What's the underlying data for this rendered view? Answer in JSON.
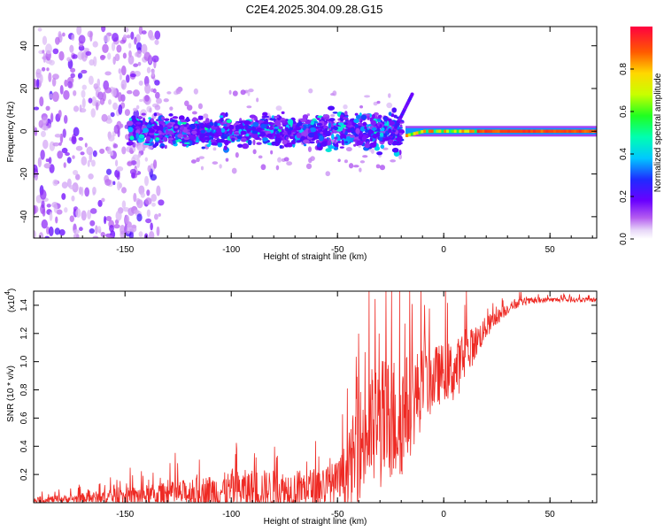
{
  "figure": {
    "title": "C2E4.2025.304.09.28.G15"
  },
  "colors": {
    "snr_line": "#ee2a24",
    "axes": "#000000",
    "background": "#ffffff"
  },
  "chart_data": [
    {
      "type": "heatmap",
      "xlabel": "Height of straight line (km)",
      "ylabel": "Frequency (Hz)",
      "xlim": [
        -193,
        72
      ],
      "ylim": [
        -50,
        49
      ],
      "xticks": [
        -150,
        -100,
        -50,
        0,
        50
      ],
      "xtick_labels": [
        "-150",
        "-100",
        "-50",
        "0",
        "50"
      ],
      "yticks": [
        -40,
        -20,
        0,
        20,
        40
      ],
      "ytick_labels": [
        "-40",
        "-20",
        "0",
        "20",
        "40"
      ],
      "grid": false,
      "colorbar": {
        "label": "Normalized spectral amplitude",
        "range": [
          0,
          1
        ],
        "ticks": [
          0.0,
          0.2,
          0.4,
          0.6,
          0.8
        ],
        "tick_labels": [
          "0.0",
          "0.2",
          "0.4",
          "0.6",
          "0.8"
        ]
      },
      "description_points": {
        "noise_band_x": [
          -193,
          -25
        ],
        "noise_band_freq_spread_hz": [
          -8,
          8
        ],
        "tone_start_x": -18,
        "tone_freq_hz": 0,
        "tone_amplitude": 0.95
      }
    },
    {
      "type": "line",
      "xlabel": "Height of straight line (km)",
      "ylabel": "SNR (10 * v/v)",
      "y_multiplier": "(x10",
      "y_multiplier_exp": "4",
      "y_multiplier_close": ")",
      "xlim": [
        -193,
        72
      ],
      "ylim": [
        0,
        1.5
      ],
      "xticks": [
        -150,
        -100,
        -50,
        0,
        50
      ],
      "xtick_labels": [
        "-150",
        "-100",
        "-50",
        "0",
        "50"
      ],
      "yticks": [
        0.2,
        0.4,
        0.6,
        0.8,
        1.0,
        1.2,
        1.4
      ],
      "ytick_labels": [
        "0.2",
        "0.4",
        "0.6",
        "0.8",
        "1.0",
        "1.2",
        "1.4"
      ],
      "grid": false,
      "series": [
        {
          "envelope_x": [
            -193,
            -175,
            -150,
            -125,
            -110,
            -100,
            -90,
            -75,
            -60,
            -50,
            -45,
            -40,
            -35,
            -30,
            -25,
            -20,
            -15,
            -10,
            -5,
            0,
            5,
            10,
            15,
            20,
            25,
            30,
            35,
            40,
            50,
            60,
            72
          ],
          "envelope_y": [
            0.02,
            0.03,
            0.05,
            0.07,
            0.09,
            0.1,
            0.11,
            0.1,
            0.12,
            0.15,
            0.25,
            0.45,
            0.55,
            0.6,
            0.62,
            0.65,
            0.75,
            0.85,
            0.9,
            0.95,
            0.95,
            1.05,
            1.15,
            1.25,
            1.32,
            1.38,
            1.42,
            1.43,
            1.44,
            1.44,
            1.44
          ],
          "noise_amp": [
            0.03,
            0.04,
            0.08,
            0.12,
            0.15,
            0.17,
            0.18,
            0.18,
            0.18,
            0.2,
            0.3,
            0.5,
            0.55,
            0.6,
            0.6,
            0.55,
            0.45,
            0.35,
            0.3,
            0.25,
            0.28,
            0.22,
            0.15,
            0.1,
            0.07,
            0.05,
            0.04,
            0.03,
            0.02,
            0.02,
            0.02
          ]
        }
      ]
    }
  ]
}
